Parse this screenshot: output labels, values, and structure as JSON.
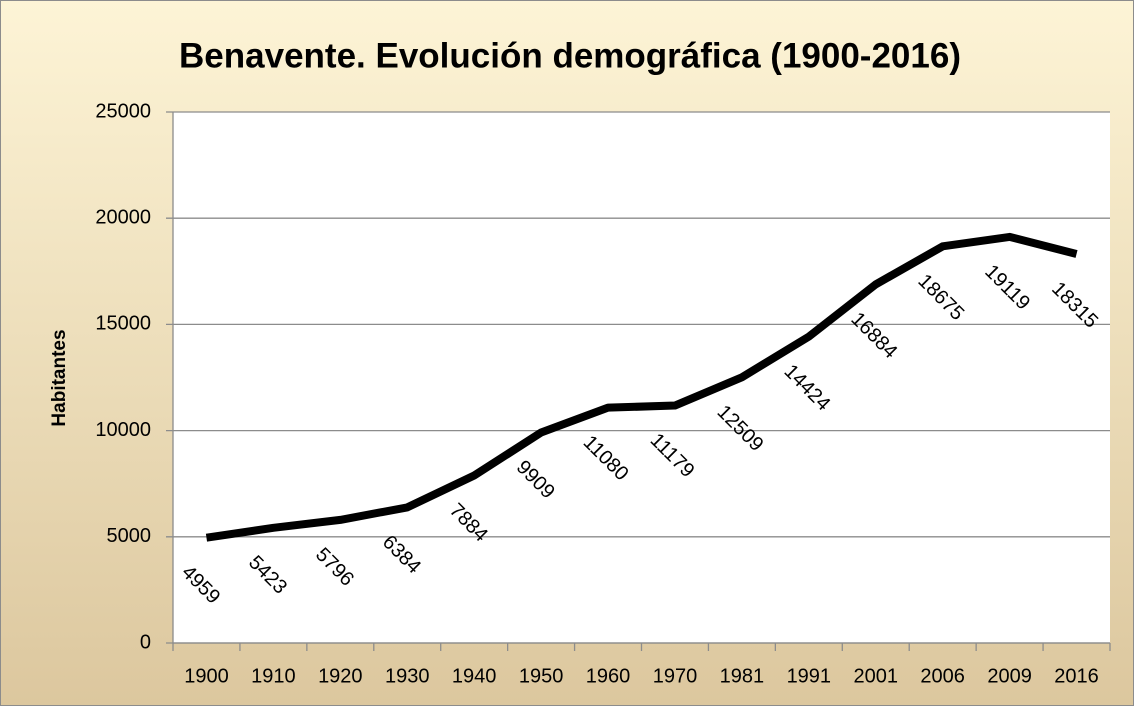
{
  "chart_data": {
    "type": "line",
    "title": "Benavente. Evolución demográfica (1900-2016)",
    "y_label": "Habitantes",
    "categories": [
      "1900",
      "1910",
      "1920",
      "1930",
      "1940",
      "1950",
      "1960",
      "1970",
      "1981",
      "1991",
      "2001",
      "2006",
      "2009",
      "2016"
    ],
    "series": [
      {
        "name": "Habitantes",
        "color": "#000000",
        "values": [
          4959,
          5423,
          5796,
          6384,
          7884,
          9909,
          11080,
          11179,
          12509,
          14424,
          16884,
          18675,
          19119,
          18315
        ]
      }
    ],
    "ylim": [
      0,
      25000
    ],
    "yticks": [
      0,
      5000,
      10000,
      15000,
      20000,
      25000
    ],
    "grid": true
  }
}
